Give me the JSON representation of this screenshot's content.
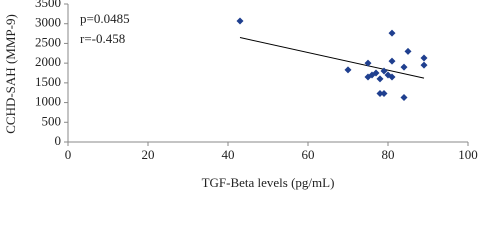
{
  "chart_data": {
    "type": "scatter",
    "x_label": "TGF-Beta levels (pg/mL)",
    "y_label": "CCHD-SAH (MMP-9)",
    "annotations": [
      "p=0.0485",
      "r=-0.458"
    ],
    "xlim": [
      0,
      100
    ],
    "xticks": [
      0,
      20,
      40,
      60,
      80,
      100
    ],
    "ylim": [
      0,
      3500
    ],
    "yticks": [
      0,
      500,
      1000,
      1500,
      2000,
      2500,
      3000,
      3500
    ],
    "grid": false,
    "series": [
      {
        "color": "#1f3f8f",
        "x": [
          43,
          81,
          85,
          89,
          89,
          84,
          81,
          75,
          70,
          76,
          77,
          78,
          79,
          80,
          81,
          78,
          79,
          84,
          75
        ],
        "values": [
          3070,
          2760,
          2300,
          2130,
          1950,
          1900,
          2050,
          2000,
          1830,
          1700,
          1750,
          1600,
          1800,
          1700,
          1650,
          1230,
          1230,
          1130,
          1650
        ]
      }
    ],
    "trendline": {
      "color": "#000000",
      "x": [
        43,
        89
      ],
      "values": [
        2650,
        1620
      ]
    }
  }
}
